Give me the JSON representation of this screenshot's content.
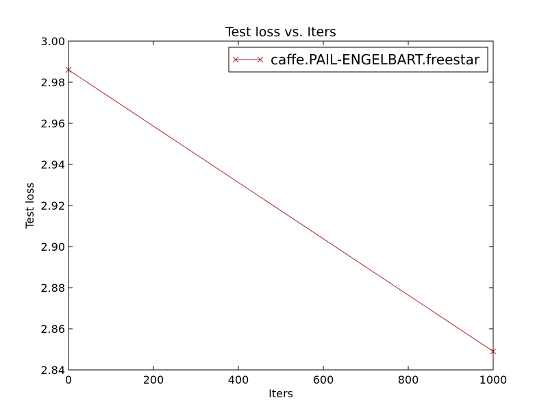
{
  "chart_data": {
    "type": "line",
    "title": "Test loss  vs. Iters",
    "xlabel": "Iters",
    "ylabel": "Test loss",
    "xlim": [
      0,
      1000
    ],
    "ylim": [
      2.84,
      3.0
    ],
    "xticks": [
      0,
      200,
      400,
      600,
      800,
      1000
    ],
    "xtick_labels": [
      "0",
      "200",
      "400",
      "600",
      "800",
      "1000"
    ],
    "yticks": [
      2.84,
      2.86,
      2.88,
      2.9,
      2.92,
      2.94,
      2.96,
      2.98,
      3.0
    ],
    "ytick_labels": [
      "2.84",
      "2.86",
      "2.88",
      "2.90",
      "2.92",
      "2.94",
      "2.96",
      "2.98",
      "3.00"
    ],
    "grid": false,
    "legend_position": "top-right",
    "series": [
      {
        "name": "caffe.PAIL-ENGELBART.freestar",
        "color": "#b22222",
        "marker": "x",
        "x": [
          0,
          1000
        ],
        "y": [
          2.986,
          2.849
        ]
      }
    ]
  }
}
